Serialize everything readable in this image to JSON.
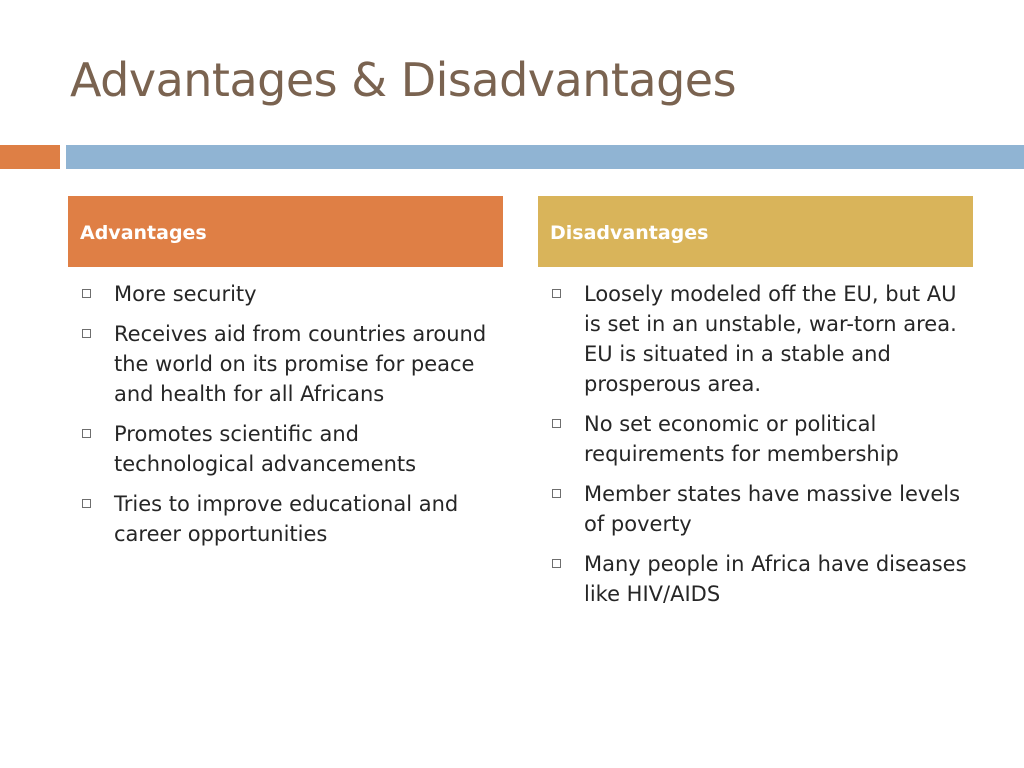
{
  "slide": {
    "title": "Advantages & Disadvantages"
  },
  "advantages": {
    "header": "Advantages",
    "items": [
      "More security",
      "Receives aid from countries around the world on its promise for peace and health for all Africans",
      "Promotes scientific and technological advancements",
      "Tries to improve educational and career opportunities"
    ]
  },
  "disadvantages": {
    "header": "Disadvantages",
    "items": [
      "Loosely modeled off the EU, but AU is set in an unstable, war-torn area. EU is situated in a stable and prosperous area.",
      "No set economic or political requirements for membership",
      "Member states have massive levels of poverty",
      "Many people in Africa have diseases like HIV/AIDS"
    ]
  },
  "colors": {
    "title_text": "#7a6350",
    "accent_orange": "#de7f45",
    "accent_blue": "#90b4d3",
    "advantages_header_bg": "#df7f45",
    "disadvantages_header_bg": "#d9b45a"
  }
}
